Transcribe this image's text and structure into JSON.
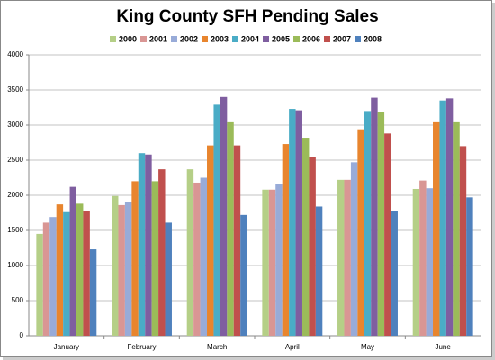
{
  "chart_data": {
    "type": "bar",
    "title": "King County SFH Pending Sales",
    "categories": [
      "January",
      "February",
      "March",
      "April",
      "May",
      "June"
    ],
    "series": [
      {
        "name": "2000",
        "color": "#b5cf87",
        "values": [
          1450,
          1990,
          2370,
          2080,
          2220,
          2090
        ]
      },
      {
        "name": "2001",
        "color": "#d99694",
        "values": [
          1610,
          1860,
          2180,
          2080,
          2220,
          2210
        ]
      },
      {
        "name": "2002",
        "color": "#98abd8",
        "values": [
          1690,
          1900,
          2250,
          2160,
          2470,
          2100
        ]
      },
      {
        "name": "2003",
        "color": "#e8852e",
        "values": [
          1870,
          2200,
          2710,
          2730,
          2940,
          3040
        ]
      },
      {
        "name": "2004",
        "color": "#4aacc6",
        "values": [
          1760,
          2600,
          3290,
          3230,
          3200,
          3350
        ]
      },
      {
        "name": "2005",
        "color": "#7f5ea0",
        "values": [
          2120,
          2580,
          3400,
          3210,
          3390,
          3380
        ]
      },
      {
        "name": "2006",
        "color": "#9bbb59",
        "values": [
          1880,
          2200,
          3040,
          2820,
          3180,
          3040
        ]
      },
      {
        "name": "2007",
        "color": "#c0504d",
        "values": [
          1770,
          2370,
          2710,
          2550,
          2880,
          2700
        ]
      },
      {
        "name": "2008",
        "color": "#4f81bd",
        "values": [
          1230,
          1610,
          1720,
          1840,
          1770,
          1970
        ]
      }
    ],
    "ylim": [
      0,
      4000
    ],
    "yticks": [
      0,
      500,
      1000,
      1500,
      2000,
      2500,
      3000,
      3500,
      4000
    ],
    "grid": true,
    "legend": "top"
  }
}
